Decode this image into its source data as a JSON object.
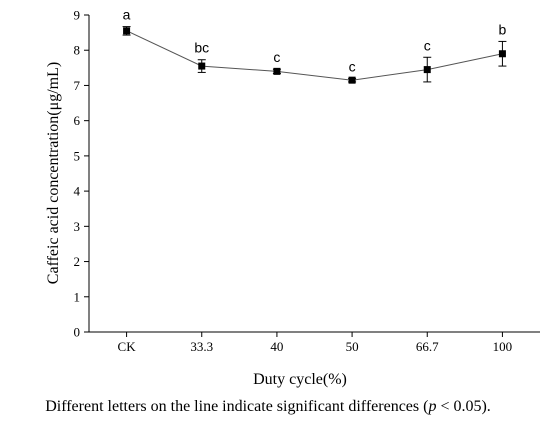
{
  "chart_data": {
    "type": "line",
    "categories": [
      "CK",
      "33.3",
      "40",
      "50",
      "66.7",
      "100"
    ],
    "series": [
      {
        "values": [
          8.55,
          7.55,
          7.4,
          7.15,
          7.45,
          7.9
        ],
        "errors": [
          0.12,
          0.18,
          0.06,
          0.05,
          0.35,
          0.35
        ],
        "labels": [
          "a",
          "bc",
          "c",
          "c",
          "c",
          "b"
        ],
        "color": "#000000"
      }
    ],
    "xlabel": "Duty cycle(%)",
    "ylabel": "Caffeic acid concentration(μg/mL)",
    "ylim": [
      0,
      9
    ],
    "yticks": [
      0,
      1,
      2,
      3,
      4,
      5,
      6,
      7,
      8,
      9
    ],
    "caption_parts": [
      "Different letters on the line indicate significant differences (",
      "p",
      " < 0.05)."
    ],
    "grid": false
  }
}
